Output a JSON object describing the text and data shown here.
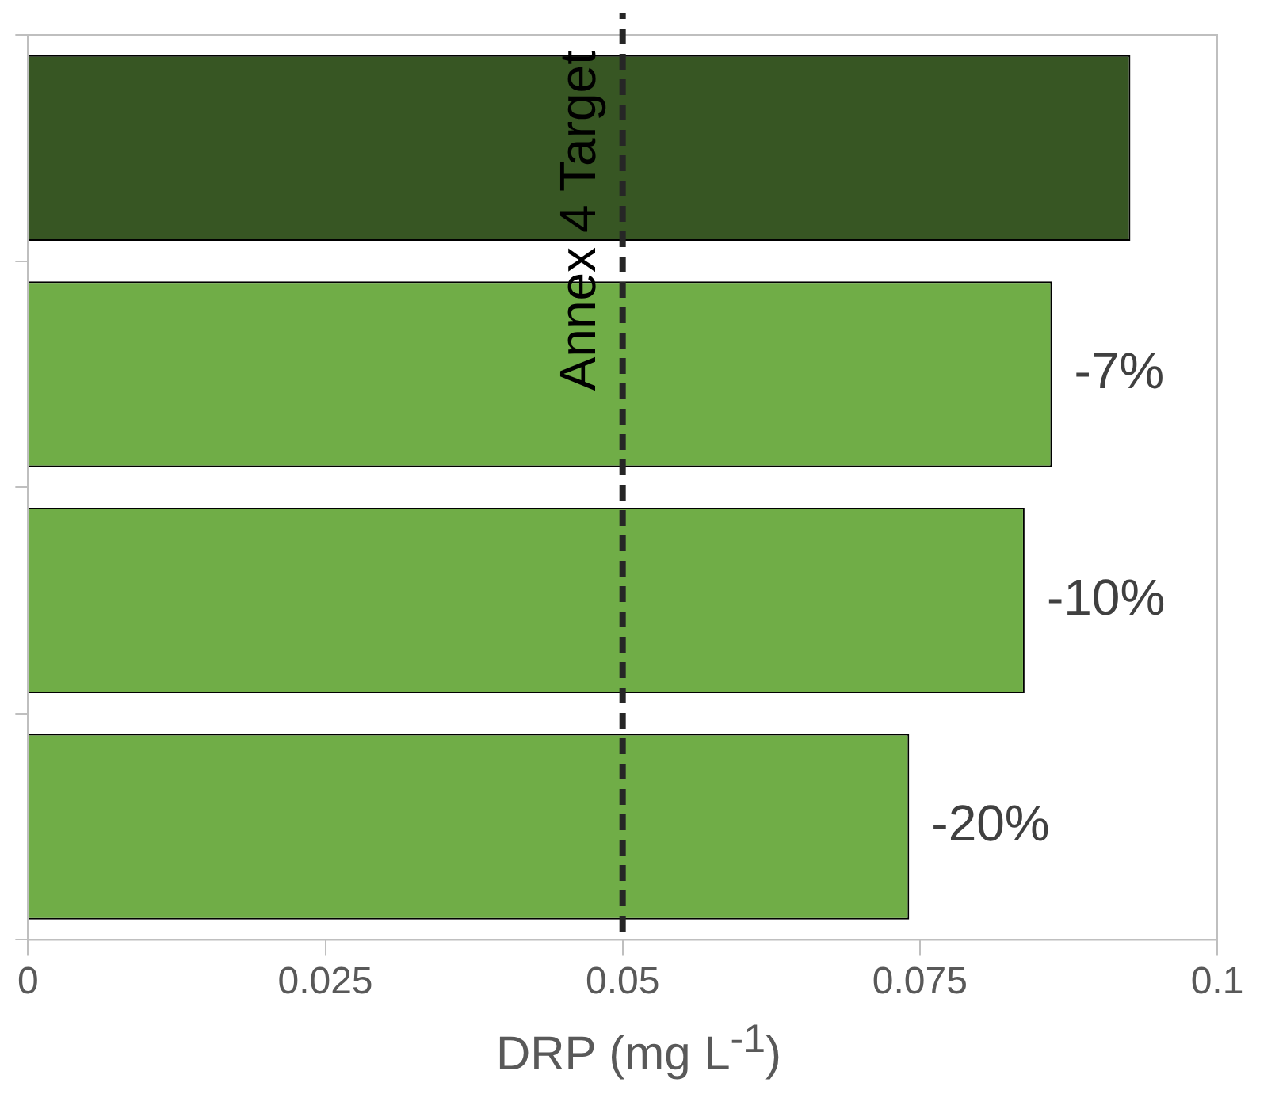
{
  "chart_data": {
    "type": "bar",
    "orientation": "horizontal",
    "categories": [
      null,
      null,
      null,
      null
    ],
    "values": [
      0.0927,
      0.0861,
      0.0838,
      0.0741
    ],
    "colors": [
      "#375623",
      "#70ad47",
      "#70ad47",
      "#70ad47"
    ],
    "annotations": [
      {
        "text": "-7%",
        "x": 0.0861
      },
      {
        "text": "-10%",
        "x": 0.0838
      },
      {
        "text": "-20%",
        "x": 0.0741
      }
    ],
    "xlabel": "DRP (mg L$^{-1}$)",
    "xlim": [
      0,
      0.1
    ],
    "xticks": [
      0,
      0.025,
      0.05,
      0.075,
      0.1
    ],
    "ref_lines": [
      {
        "axis": "x",
        "value": 0.05,
        "label": "Annex 4 Target",
        "color": "#262626",
        "line_style": "dashed"
      }
    ],
    "grid": false,
    "legend": false
  }
}
